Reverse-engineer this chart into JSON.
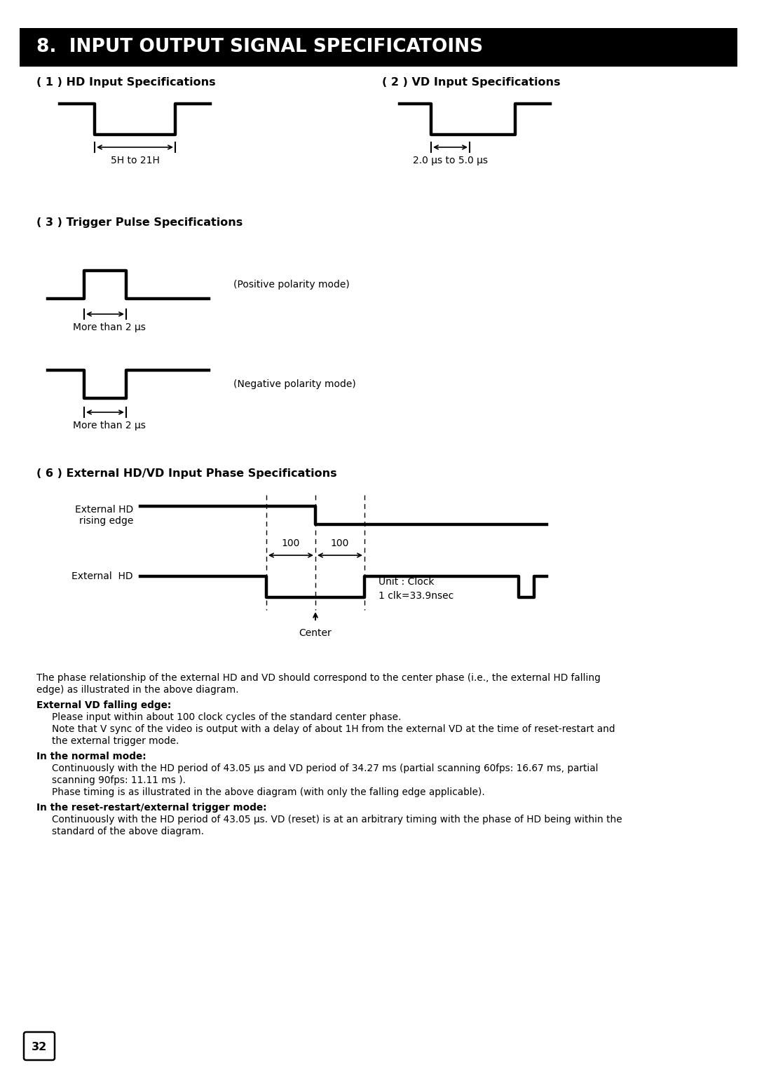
{
  "title": "8.  INPUT OUTPUT SIGNAL SPECIFICATOINS",
  "title_bg": "#000000",
  "title_color": "#ffffff",
  "page_num": "32",
  "section1_title": "( 1 ) HD Input Specifications",
  "section2_title": "( 2 ) VD Input Specifications",
  "section3_title": "( 3 ) Trigger Pulse Specifications",
  "section6_title": "( 6 ) External HD/VD Input Phase Specifications",
  "hd_label": "5H to 21H",
  "vd_label": "2.0 μs to 5.0 μs",
  "trig_pos_label": "More than 2 μs",
  "trig_pos_mode": "(Positive polarity mode)",
  "trig_neg_label": "More than 2 μs",
  "trig_neg_mode": "(Negative polarity mode)",
  "ext_hd_label": "External HD\nrising edge",
  "ext_hd2_label": "External  HD",
  "center_label": "Center",
  "unit_label": "Unit : Clock\n1 clk=33.9nsec",
  "val_100_left": "100",
  "val_100_right": "100",
  "text_intro1": "The phase relationship of the external HD and VD should correspond to the center phase (i.e., the external HD falling",
  "text_intro2": "edge) as illustrated in the above diagram.",
  "bold1": "External VD falling edge:",
  "text1": "Please input within about 100 clock cycles of the standard center phase.",
  "note1a": "Note that V sync of the video is output with a delay of about 1H from the external VD at the time of reset-restart and",
  "note1b": "the external trigger mode.",
  "bold2": "In the normal mode:",
  "text2a": "Continuously with the HD period of 43.05 μs and VD period of 34.27 ms (partial scanning 60fps: 16.67 ms, partial",
  "text2b": "scanning 90fps: 11.11 ms ).",
  "text2c": "Phase timing is as illustrated in the above diagram (with only the falling edge applicable).",
  "bold3": "In the reset-restart/external trigger mode:",
  "text3a": "Continuously with the HD period of 43.05 μs. VD (reset) is at an arbitrary timing with the phase of HD being within the",
  "text3b": "standard of the above diagram.",
  "bg_color": "#ffffff",
  "line_color": "#000000"
}
